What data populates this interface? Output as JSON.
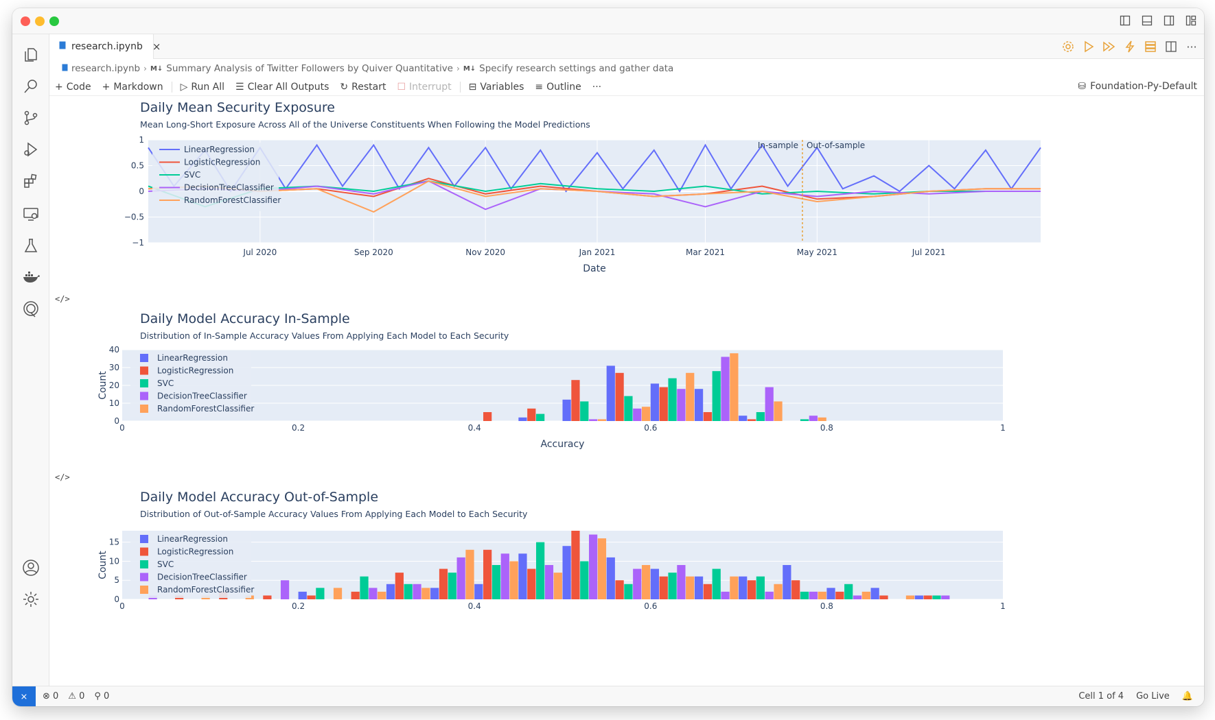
{
  "window": {
    "title_icons": [
      "sidebar-left-icon",
      "panel-bottom-icon",
      "sidebar-right-icon",
      "layout-icon"
    ]
  },
  "activity_bar": {
    "items": [
      "explorer-icon",
      "search-icon",
      "source-control-icon",
      "run-debug-icon",
      "extensions-icon",
      "remote-explorer-icon",
      "testing-icon",
      "docker-icon",
      "quantconnect-icon"
    ],
    "bottom": [
      "account-icon",
      "settings-gear-icon"
    ]
  },
  "tab": {
    "label": "research.ipynb",
    "close": "×"
  },
  "breadcrumb": {
    "file": "research.ipynb",
    "md_badge": "M↓",
    "section1": "Summary Analysis of Twitter Followers by Quiver Quantitative",
    "section2": "Specify research settings and gather data"
  },
  "toolbar": {
    "code": "Code",
    "markdown": "Markdown",
    "run_all": "Run All",
    "clear_all": "Clear All Outputs",
    "restart": "Restart",
    "interrupt": "Interrupt",
    "variables": "Variables",
    "outline": "Outline",
    "more": "···",
    "kernel": "Foundation-Py-Default"
  },
  "colors": {
    "LinearRegression": "#636efa",
    "LogisticRegression": "#ef553b",
    "SVC": "#00cc96",
    "DecisionTreeClassifier": "#ab63fa",
    "RandomForestClassifier": "#ffa15a",
    "plot_bg": "#e5ecf6",
    "title": "#2a3f5f"
  },
  "code_icon": "</>",
  "chart_data": [
    {
      "type": "line",
      "title": "Daily Mean Security Exposure",
      "subtitle": "Mean Long-Short Exposure Across All of the Universe Constituents When Following the Model Predictions",
      "xlabel": "Date",
      "ylabel": "",
      "x_range": [
        "2020-05-01",
        "2021-08-31"
      ],
      "x_ticks": [
        "Jul 2020",
        "Sep 2020",
        "Nov 2020",
        "Jan 2021",
        "Mar 2021",
        "May 2021",
        "Jul 2021"
      ],
      "x_tick_dates": [
        "2020-07-01",
        "2020-09-01",
        "2020-11-01",
        "2021-01-01",
        "2021-03-01",
        "2021-05-01",
        "2021-07-01"
      ],
      "ylim": [
        -1,
        1
      ],
      "y_ticks": [
        "1",
        "0.5",
        "0",
        "−0.5",
        "−1"
      ],
      "y_tick_values": [
        1,
        0.5,
        0,
        -0.5,
        -1
      ],
      "split_date": "2021-04-23",
      "annotations": [
        "In-sample",
        "Out-of-sample"
      ],
      "legend_position": "top-left",
      "series": [
        {
          "name": "LinearRegression",
          "x": [
            "2020-05-01",
            "2020-05-15",
            "2020-06-01",
            "2020-06-15",
            "2020-07-01",
            "2020-07-15",
            "2020-08-01",
            "2020-08-15",
            "2020-09-01",
            "2020-09-15",
            "2020-10-01",
            "2020-10-15",
            "2020-11-01",
            "2020-11-15",
            "2020-12-01",
            "2020-12-15",
            "2021-01-01",
            "2021-01-15",
            "2021-02-01",
            "2021-02-15",
            "2021-03-01",
            "2021-03-15",
            "2021-04-01",
            "2021-04-15",
            "2021-05-01",
            "2021-05-15",
            "2021-06-01",
            "2021-06-15",
            "2021-07-01",
            "2021-07-15",
            "2021-08-01",
            "2021-08-15",
            "2021-08-31"
          ],
          "y": [
            0.85,
            0.1,
            0.8,
            0.0,
            0.85,
            0.05,
            0.9,
            0.1,
            0.9,
            0.05,
            0.85,
            0.1,
            0.85,
            0.05,
            0.8,
            0.0,
            0.75,
            0.05,
            0.8,
            0.0,
            0.9,
            0.05,
            0.9,
            0.1,
            0.85,
            0.05,
            0.3,
            0.0,
            0.5,
            0.05,
            0.8,
            0.05,
            0.85
          ]
        },
        {
          "name": "LogisticRegression",
          "x": [
            "2020-05-01",
            "2020-06-01",
            "2020-07-01",
            "2020-08-01",
            "2020-09-01",
            "2020-10-01",
            "2020-11-01",
            "2020-12-01",
            "2021-01-01",
            "2021-02-01",
            "2021-03-01",
            "2021-04-01",
            "2021-05-01",
            "2021-06-01",
            "2021-07-01",
            "2021-08-01",
            "2021-08-31"
          ],
          "y": [
            0.05,
            0.1,
            0.0,
            0.05,
            -0.1,
            0.25,
            -0.05,
            0.1,
            0.0,
            -0.1,
            -0.05,
            0.1,
            -0.15,
            -0.1,
            0.0,
            0.05,
            0.05
          ]
        },
        {
          "name": "SVC",
          "x": [
            "2020-05-01",
            "2020-06-01",
            "2020-07-01",
            "2020-08-01",
            "2020-09-01",
            "2020-10-01",
            "2020-11-01",
            "2020-12-01",
            "2021-01-01",
            "2021-02-01",
            "2021-03-01",
            "2021-04-01",
            "2021-05-01",
            "2021-06-01",
            "2021-07-01",
            "2021-08-01",
            "2021-08-31"
          ],
          "y": [
            0.1,
            -0.3,
            0.05,
            0.1,
            0.0,
            0.2,
            0.0,
            0.15,
            0.05,
            0.0,
            0.1,
            -0.05,
            0.0,
            -0.05,
            0.0,
            0.0,
            0.0
          ]
        },
        {
          "name": "DecisionTreeClassifier",
          "x": [
            "2020-05-01",
            "2020-06-01",
            "2020-07-01",
            "2020-08-01",
            "2020-09-01",
            "2020-10-01",
            "2020-11-01",
            "2020-12-01",
            "2021-01-01",
            "2021-02-01",
            "2021-03-01",
            "2021-04-01",
            "2021-05-01",
            "2021-06-01",
            "2021-07-01",
            "2021-08-01",
            "2021-08-31"
          ],
          "y": [
            0.0,
            0.05,
            0.0,
            0.1,
            -0.05,
            0.2,
            -0.35,
            0.05,
            0.0,
            -0.05,
            -0.3,
            0.0,
            -0.1,
            0.0,
            -0.05,
            0.0,
            0.0
          ]
        },
        {
          "name": "RandomForestClassifier",
          "x": [
            "2020-05-01",
            "2020-06-01",
            "2020-07-01",
            "2020-08-01",
            "2020-09-01",
            "2020-10-01",
            "2020-11-01",
            "2020-12-01",
            "2021-01-01",
            "2021-02-01",
            "2021-03-01",
            "2021-04-01",
            "2021-05-01",
            "2021-06-01",
            "2021-07-01",
            "2021-08-01",
            "2021-08-31"
          ],
          "y": [
            0.05,
            0.1,
            0.0,
            0.05,
            -0.4,
            0.2,
            -0.1,
            0.05,
            0.0,
            -0.1,
            -0.05,
            0.0,
            -0.2,
            -0.1,
            0.0,
            0.05,
            0.05
          ]
        }
      ]
    },
    {
      "type": "bar",
      "title": "Daily Model Accuracy In-Sample",
      "subtitle": "Distribution of In-Sample Accuracy Values From Applying Each Model to Each Security",
      "xlabel": "Accuracy",
      "ylabel": "Count",
      "xlim": [
        0,
        1
      ],
      "ylim": [
        0,
        40
      ],
      "x_ticks": [
        "0",
        "0.2",
        "0.4",
        "0.6",
        "0.8",
        "1"
      ],
      "y_ticks": [
        "0",
        "10",
        "20",
        "30",
        "40"
      ],
      "legend_position": "top-left",
      "bin_width": 0.05,
      "bins": [
        0.4,
        0.45,
        0.5,
        0.55,
        0.6,
        0.65,
        0.7,
        0.75
      ],
      "series": [
        {
          "name": "LinearRegression",
          "values": [
            0,
            2,
            12,
            31,
            21,
            18,
            3,
            0
          ]
        },
        {
          "name": "LogisticRegression",
          "values": [
            5,
            7,
            23,
            27,
            19,
            5,
            1,
            0
          ]
        },
        {
          "name": "SVC",
          "values": [
            0,
            4,
            11,
            14,
            24,
            28,
            5,
            1
          ]
        },
        {
          "name": "DecisionTreeClassifier",
          "values": [
            0,
            0,
            1,
            7,
            18,
            36,
            19,
            3
          ]
        },
        {
          "name": "RandomForestClassifier",
          "values": [
            0,
            0,
            1,
            8,
            27,
            38,
            11,
            2
          ]
        }
      ]
    },
    {
      "type": "bar",
      "title": "Daily Model Accuracy Out-of-Sample",
      "subtitle": "Distribution of Out-of-Sample Accuracy Values From Applying Each Model to Each Security",
      "xlabel": "",
      "ylabel": "Count",
      "xlim": [
        0,
        1
      ],
      "ylim": [
        0,
        18
      ],
      "x_ticks": [
        "0",
        "0.2",
        "0.4",
        "0.6",
        "0.8",
        "1"
      ],
      "y_ticks": [
        "0",
        "5",
        "10",
        "15"
      ],
      "legend_position": "top-left",
      "bin_width": 0.05,
      "bins": [
        0.0,
        0.05,
        0.1,
        0.15,
        0.2,
        0.25,
        0.3,
        0.35,
        0.4,
        0.45,
        0.5,
        0.55,
        0.6,
        0.65,
        0.7,
        0.75,
        0.8,
        0.85,
        0.9
      ],
      "series": [
        {
          "name": "LinearRegression",
          "values": [
            0,
            0,
            0,
            0,
            2,
            0,
            4,
            3,
            4,
            12,
            14,
            11,
            8,
            6,
            6,
            9,
            3,
            3,
            1
          ]
        },
        {
          "name": "LogisticRegression",
          "values": [
            0,
            1,
            2,
            1,
            1,
            2,
            7,
            8,
            13,
            8,
            18,
            5,
            6,
            4,
            5,
            5,
            2,
            1,
            1
          ]
        },
        {
          "name": "SVC",
          "values": [
            0,
            0,
            0,
            0,
            3,
            6,
            4,
            7,
            9,
            15,
            10,
            4,
            7,
            8,
            6,
            2,
            4,
            0,
            1
          ]
        },
        {
          "name": "DecisionTreeClassifier",
          "values": [
            1,
            0,
            0,
            5,
            0,
            3,
            4,
            11,
            12,
            9,
            17,
            8,
            9,
            2,
            2,
            2,
            1,
            0,
            1
          ]
        },
        {
          "name": "RandomForestClassifier",
          "values": [
            0,
            1,
            1,
            0,
            3,
            2,
            3,
            13,
            10,
            7,
            16,
            9,
            6,
            6,
            4,
            2,
            2,
            1,
            0
          ]
        }
      ]
    }
  ],
  "statusbar": {
    "remote": "⨯",
    "errors": "⊗ 0",
    "warnings": "⚠ 0",
    "ports": "⚲ 0",
    "cell": "Cell 1 of 4",
    "golive": "Go Live",
    "bell": "🔔"
  }
}
